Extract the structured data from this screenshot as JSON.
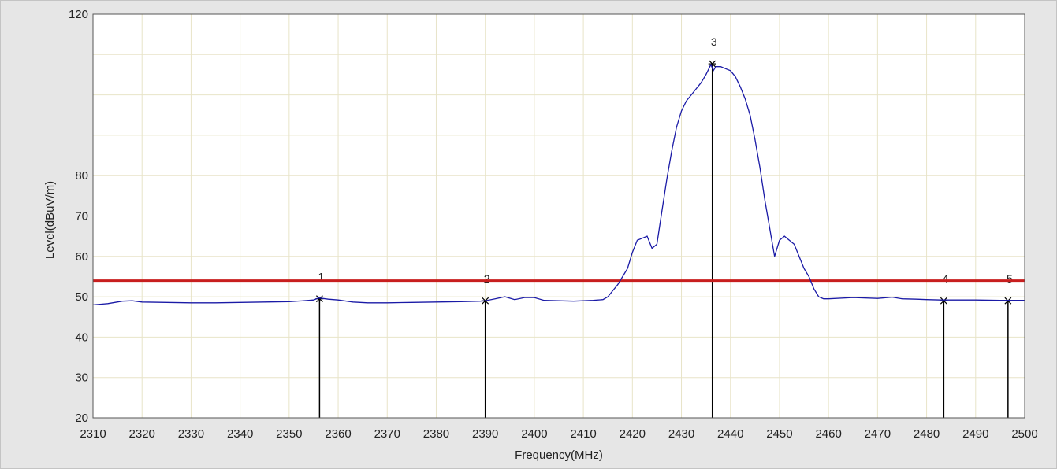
{
  "colors": {
    "plot_background": "#ffffff",
    "frame_background": "#e6e6e6",
    "grid": "#e8e4c8",
    "trace": "#1a1aa6",
    "limit_line": "#c81e1e",
    "marker": "#000000"
  },
  "chart_data": {
    "type": "line",
    "title": "",
    "xlabel": "Frequency(MHz)",
    "ylabel": "Level(dBuV/m)",
    "xlim": [
      2310,
      2500
    ],
    "ylim": [
      20,
      120
    ],
    "x_ticks": [
      2310,
      2320,
      2330,
      2340,
      2350,
      2360,
      2370,
      2380,
      2390,
      2400,
      2410,
      2420,
      2430,
      2440,
      2450,
      2460,
      2470,
      2480,
      2490,
      2500
    ],
    "y_ticks": [
      20,
      30,
      40,
      50,
      60,
      70,
      80,
      120
    ],
    "grid": true,
    "limit_line": {
      "value": 54
    },
    "series": [
      {
        "x": [
          2310,
          2313,
          2316,
          2318,
          2320,
          2325,
          2330,
          2335,
          2340,
          2345,
          2350,
          2353,
          2355,
          2356,
          2358,
          2360,
          2363,
          2366,
          2370,
          2375,
          2380,
          2385,
          2389,
          2390,
          2392,
          2394,
          2396,
          2398,
          2400,
          2402,
          2405,
          2408,
          2410,
          2412,
          2414,
          2415,
          2416,
          2417,
          2418,
          2419,
          2420,
          2421,
          2422,
          2423,
          2424,
          2425,
          2426,
          2427,
          2428,
          2429,
          2430,
          2431,
          2432,
          2433,
          2434,
          2435,
          2436,
          2436.5,
          2437,
          2438,
          2439,
          2440,
          2441,
          2442,
          2443,
          2444,
          2445,
          2446,
          2447,
          2448,
          2449,
          2450,
          2451,
          2452,
          2453,
          2454,
          2455,
          2456,
          2457,
          2458,
          2459,
          2460,
          2465,
          2470,
          2473,
          2475,
          2478,
          2480,
          2483,
          2485,
          2490,
          2495,
          2497,
          2500
        ],
        "y": [
          48.0,
          48.3,
          48.9,
          49.0,
          48.7,
          48.6,
          48.5,
          48.5,
          48.6,
          48.7,
          48.8,
          49.0,
          49.2,
          49.7,
          49.4,
          49.2,
          48.7,
          48.5,
          48.5,
          48.6,
          48.7,
          48.8,
          48.9,
          49.0,
          49.5,
          50.0,
          49.3,
          49.8,
          49.8,
          49.1,
          49.0,
          48.9,
          49.0,
          49.1,
          49.3,
          50.0,
          51.5,
          53.0,
          55.0,
          57.0,
          61.0,
          64.0,
          64.5,
          65.0,
          62.0,
          63.0,
          71.0,
          79.0,
          86.0,
          92.0,
          96.0,
          98.5,
          100.0,
          101.5,
          103.0,
          105.0,
          107.5,
          106.0,
          107.0,
          107.0,
          106.5,
          106.0,
          104.5,
          102.0,
          99.0,
          95.0,
          89.0,
          82.0,
          74.0,
          67.0,
          60.0,
          64.0,
          65.0,
          64.0,
          63.0,
          60.0,
          57.0,
          55.0,
          52.0,
          50.0,
          49.5,
          49.5,
          49.8,
          49.6,
          49.9,
          49.5,
          49.4,
          49.3,
          49.2,
          49.2,
          49.2,
          49.1,
          49.1,
          49.1
        ]
      }
    ],
    "markers": [
      {
        "label": "1",
        "x": 2356.2,
        "y": 49.5
      },
      {
        "label": "2",
        "x": 2390.0,
        "y": 49.0
      },
      {
        "label": "3",
        "x": 2436.3,
        "y": 107.7
      },
      {
        "label": "4",
        "x": 2483.5,
        "y": 49.0
      },
      {
        "label": "5",
        "x": 2496.6,
        "y": 49.0
      }
    ]
  }
}
